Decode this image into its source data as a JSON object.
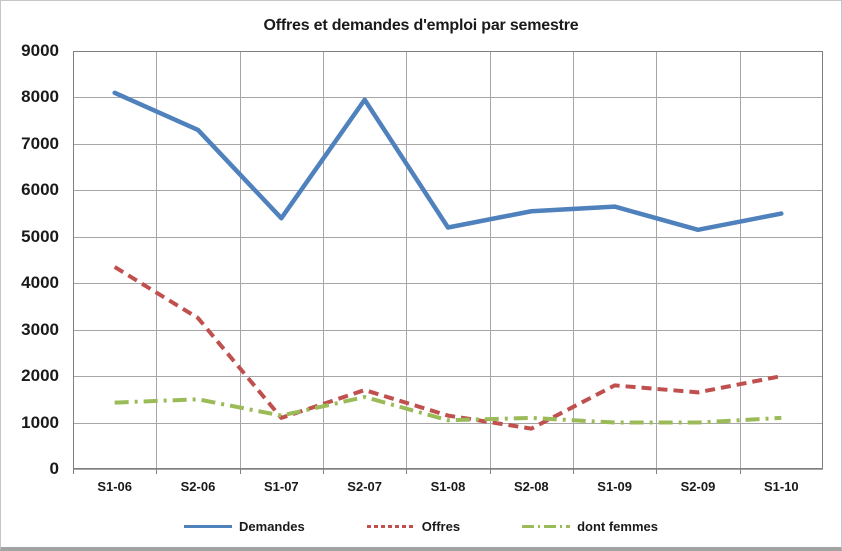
{
  "chart_data": {
    "type": "line",
    "title": "Offres et demandes d'emploi par semestre",
    "categories": [
      "S1-06",
      "S2-06",
      "S1-07",
      "S2-07",
      "S1-08",
      "S2-08",
      "S1-09",
      "S2-09",
      "S1-10"
    ],
    "series": [
      {
        "name": "Demandes",
        "color": "#4F81BD",
        "line_style": "solid",
        "values": [
          8100,
          7300,
          5400,
          7950,
          5200,
          5550,
          5650,
          5150,
          5500
        ]
      },
      {
        "name": "Offres",
        "color": "#C0504D",
        "line_style": "dashed",
        "values": [
          4350,
          3250,
          1100,
          1700,
          1150,
          870,
          1800,
          1650,
          2000
        ]
      },
      {
        "name": "dont femmes",
        "color": "#9BBB59",
        "line_style": "dash-dot",
        "values": [
          1430,
          1500,
          1150,
          1550,
          1050,
          1100,
          1000,
          1000,
          1100
        ]
      }
    ],
    "xlabel": "",
    "ylabel": "",
    "ylim": [
      0,
      9000
    ],
    "y_tick_step": 1000,
    "y_tick_labels": [
      "0",
      "1000",
      "2000",
      "3000",
      "4000",
      "5000",
      "6000",
      "7000",
      "8000",
      "9000"
    ],
    "grid": true,
    "legend_position": "bottom"
  },
  "style": {
    "gridline_color": "#A6A6A6",
    "plot_border_color": "#808080",
    "text_color": "#1a1a1a",
    "background_color": "#FFFFFF"
  }
}
